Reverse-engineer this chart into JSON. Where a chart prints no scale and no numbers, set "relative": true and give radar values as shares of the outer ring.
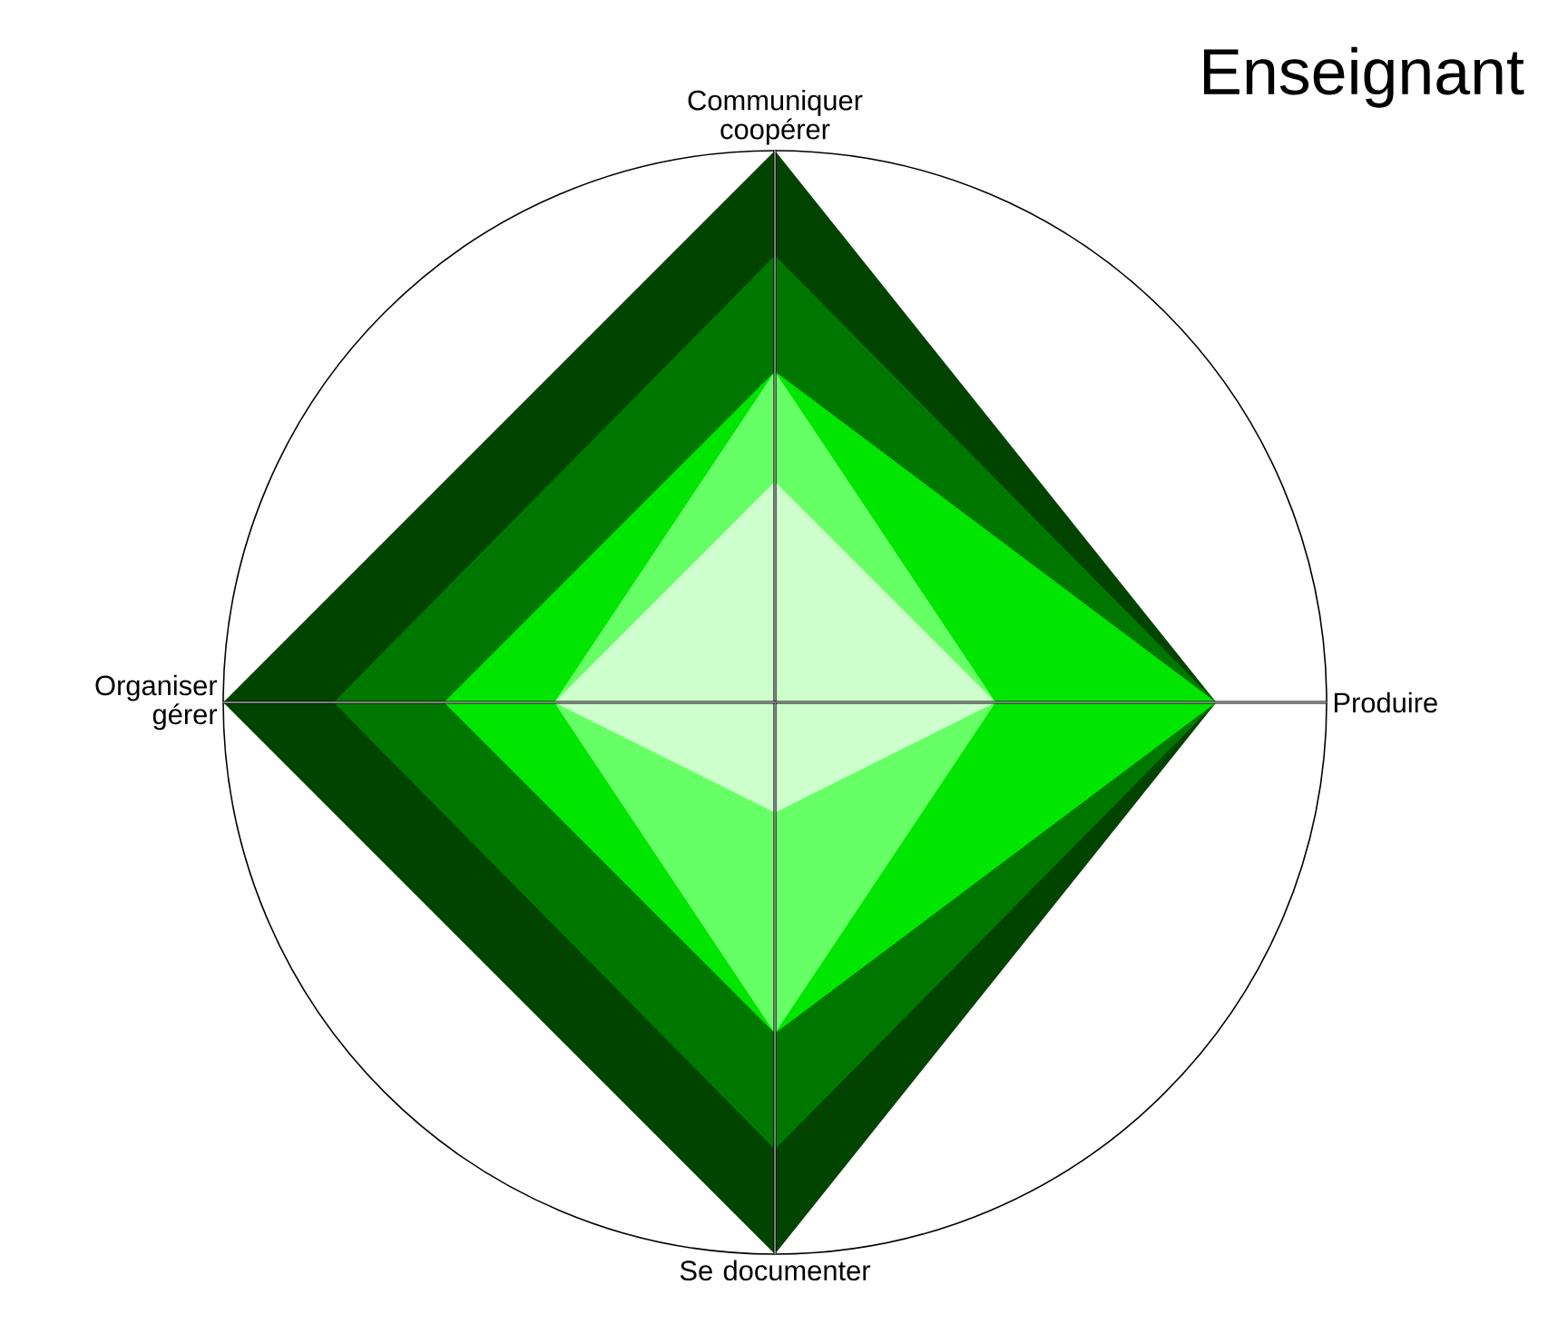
{
  "chart_data": {
    "type": "radar",
    "title": "Enseignant",
    "categories": [
      "Communiquer coopérer",
      "Produire",
      "Se documenter",
      "Organiser gérer"
    ],
    "relative": true,
    "series": [
      {
        "color": "#004400",
        "values": [
          1,
          0.8,
          1,
          1
        ]
      },
      {
        "color": "#007800",
        "values": [
          0.81,
          0.8,
          0.81,
          0.8
        ]
      },
      {
        "color": "#00e600",
        "values": [
          0.6,
          0.8,
          0.6,
          0.6
        ]
      },
      {
        "color": "#66ff66",
        "values": [
          0.6,
          0.4,
          0.6,
          0.4
        ]
      },
      {
        "color": "#ccffcc",
        "values": [
          0.4,
          0.4,
          0.2,
          0.4
        ]
      }
    ]
  }
}
